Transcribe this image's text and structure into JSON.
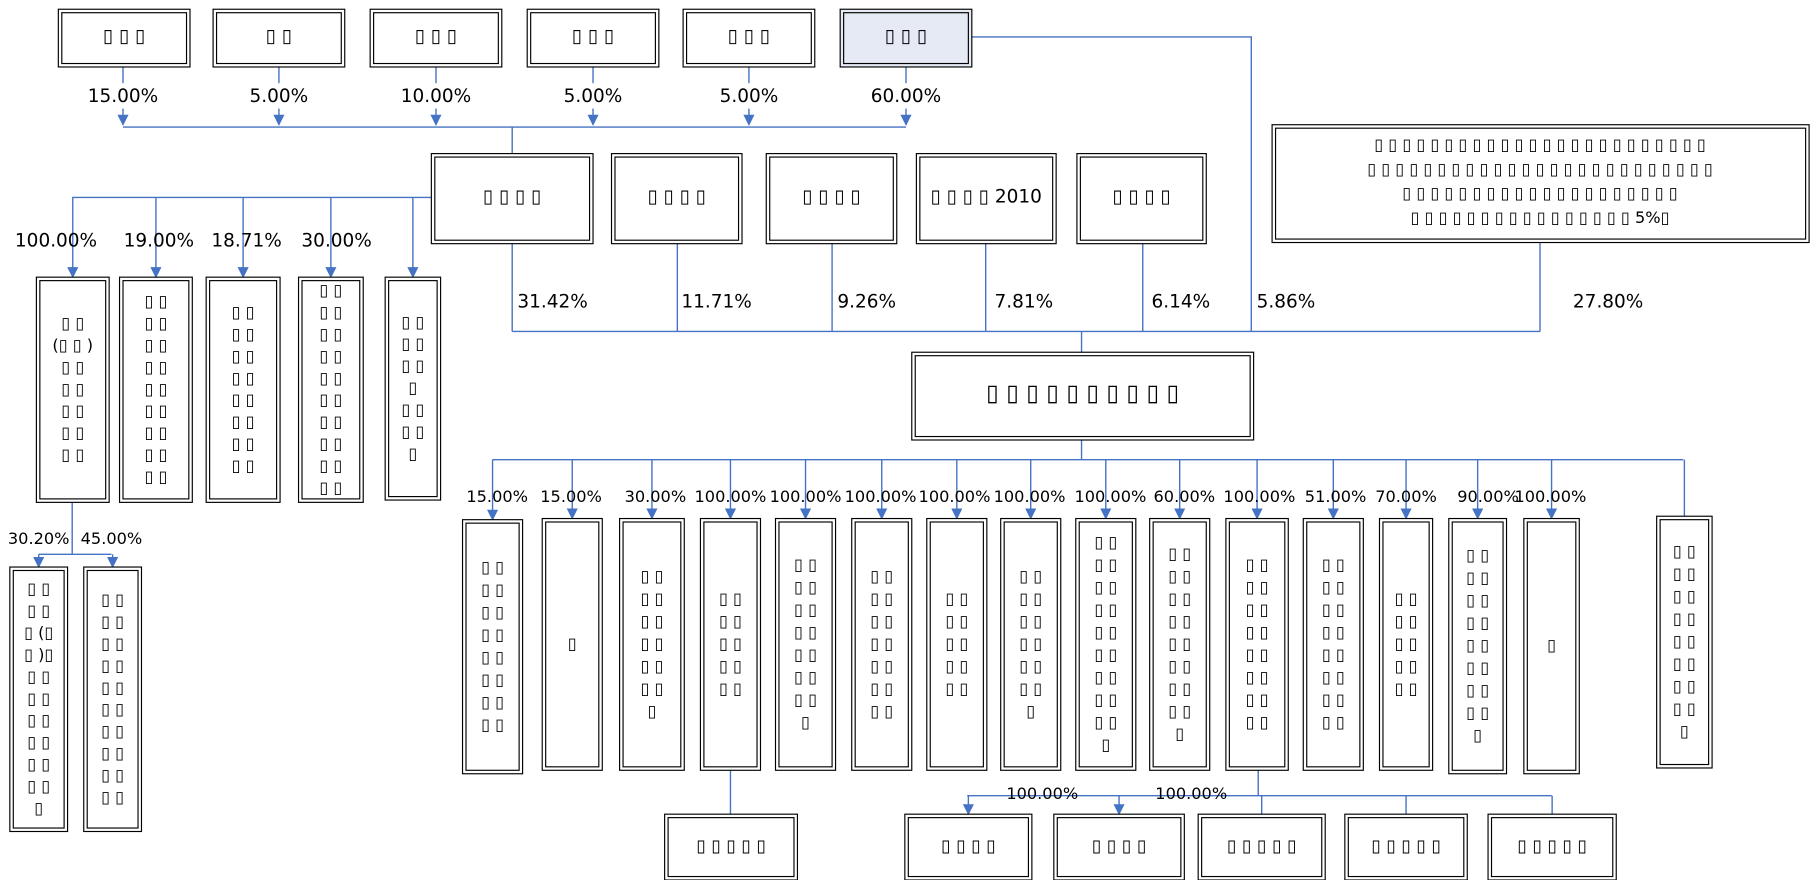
{
  "top_shareholders": [
    {
      "label": "▯ ▯ ▯",
      "percent": "15.00%"
    },
    {
      "label": "▯   ▯",
      "percent": "5.00%"
    },
    {
      "label": "▯ ▯ ▯",
      "percent": "10.00%"
    },
    {
      "label": "▯ ▯ ▯",
      "percent": "5.00%"
    },
    {
      "label": "▯ ▯ ▯",
      "percent": "5.00%"
    },
    {
      "label": "▯ ▯ ▯",
      "percent": "60.00%",
      "direct_percent": "5.86%"
    }
  ],
  "middle_shareholders": [
    {
      "label": "▯ ▯ ▯ ▯",
      "percent": "31.42%"
    },
    {
      "label": "▯ ▯ ▯ ▯",
      "percent": "11.71%"
    },
    {
      "label": "▯ ▯ ▯ ▯",
      "percent": "9.26%"
    },
    {
      "label": "▯ ▯ ▯ ▯ 2010",
      "percent": "7.81%"
    },
    {
      "label": "▯ ▯ ▯ ▯",
      "percent": "6.14%"
    }
  ],
  "note_box": {
    "lines": [
      "▯ ▯ ▯ ▯ ▯ ▯ ▯ ▯ ▯ ▯ ▯ ▯ ▯ ▯ ▯ ▯ ▯ ▯ ▯ ▯ ▯ ▯ ▯ ▯",
      "▯ ▯ ▯ ▯ ▯ ▯ ▯ ▯ ▯ ▯ ▯ ▯ ▯ ▯ ▯ ▯ ▯ ▯ ▯ ▯ ▯ ▯ ▯ ▯ ▯",
      "▯ ▯ ▯ ▯ ▯ ▯ ▯ ▯ ▯ ▯ ▯ ▯ ▯ ▯ ▯ ▯ ▯ ▯ ▯ ▯",
      "▯ ▯ ▯ ▯ ▯ ▯ ▯ ▯ ▯ ▯ ▯ ▯ ▯ ▯ ▯ ▯ 5%▯"
    ],
    "percent": "27.80%"
  },
  "company": {
    "label": "▯ ▯ ▯ ▯ ▯ ▯ ▯ ▯ ▯ ▯"
  },
  "left_investees": [
    {
      "lines": [
        "▯ ▯",
        "(▯ ▯ )",
        "▯ ▯",
        "▯ ▯",
        "▯ ▯",
        "▯ ▯",
        "▯ ▯"
      ],
      "percent": "100.00%"
    },
    {
      "lines": [
        "▯ ▯",
        "▯ ▯",
        "▯ ▯",
        "▯ ▯",
        "▯ ▯",
        "▯ ▯",
        "▯ ▯",
        "▯ ▯",
        "▯ ▯"
      ],
      "percent": "19.00%"
    },
    {
      "lines": [
        "▯ ▯",
        "▯ ▯",
        "▯ ▯",
        "▯ ▯",
        "▯ ▯",
        "▯ ▯",
        "▯ ▯",
        "▯ ▯"
      ],
      "percent": "18.71%"
    },
    {
      "lines": [
        "▯ ▯",
        "▯ ▯",
        "▯ ▯",
        "▯ ▯",
        "▯ ▯",
        "▯ ▯",
        "▯ ▯",
        "▯ ▯",
        "▯ ▯",
        "▯ ▯"
      ],
      "percent": "30.00%"
    },
    {
      "lines": [
        "▯ ▯",
        "▯ ▯",
        "▯ ▯",
        "▯",
        "▯ ▯",
        "▯ ▯",
        "▯"
      ]
    }
  ],
  "left_sub": [
    {
      "lines": [
        "▯ ▯",
        "▯ ▯",
        "▯ (▯",
        "▯ )▯",
        "▯ ▯",
        "▯ ▯",
        "▯ ▯",
        "▯ ▯",
        "▯ ▯",
        "▯ ▯",
        "▯"
      ],
      "percent": "30.20%"
    },
    {
      "lines": [
        "▯ ▯",
        "▯ ▯",
        "▯ ▯",
        "▯ ▯",
        "▯ ▯",
        "▯ ▯",
        "▯ ▯",
        "▯ ▯",
        "▯ ▯",
        "▯ ▯"
      ],
      "percent": "45.00%"
    }
  ],
  "subsidiaries": [
    {
      "lines": [
        "▯ ▯",
        "▯ ▯",
        "▯ ▯",
        "▯ ▯",
        "▯ ▯",
        "▯ ▯",
        "▯ ▯",
        "▯ ▯"
      ],
      "percent": "15.00%"
    },
    {
      "lines": [
        "▯"
      ],
      "percent": "15.00%"
    },
    {
      "lines": [
        "▯ ▯",
        "▯ ▯",
        "▯ ▯",
        "▯ ▯",
        "▯ ▯",
        "▯ ▯",
        "▯"
      ],
      "percent": "30.00%"
    },
    {
      "lines": [
        "▯ ▯",
        "▯ ▯",
        "▯ ▯",
        "▯ ▯",
        "▯ ▯"
      ],
      "percent": "100.00%"
    },
    {
      "lines": [
        "▯ ▯",
        "▯ ▯",
        "▯ ▯",
        "▯ ▯",
        "▯ ▯",
        "▯ ▯",
        "▯ ▯",
        "▯"
      ],
      "percent": "100.00%"
    },
    {
      "lines": [
        "▯ ▯",
        "▯ ▯",
        "▯ ▯",
        "▯ ▯",
        "▯ ▯",
        "▯ ▯",
        "▯ ▯"
      ],
      "percent": "100.00%"
    },
    {
      "lines": [
        "▯ ▯",
        "▯ ▯",
        "▯ ▯",
        "▯ ▯",
        "▯ ▯"
      ],
      "percent": "100.00%"
    },
    {
      "lines": [
        "▯ ▯",
        "▯ ▯",
        "▯ ▯",
        "▯ ▯",
        "▯ ▯",
        "▯ ▯",
        "▯"
      ],
      "percent": "100.00%"
    },
    {
      "lines": [
        "▯ ▯",
        "▯ ▯",
        "▯ ▯",
        "▯ ▯",
        "▯ ▯",
        "▯ ▯",
        "▯ ▯",
        "▯ ▯",
        "▯ ▯",
        "▯"
      ],
      "percent": "100.00%"
    },
    {
      "lines": [
        "▯ ▯",
        "▯ ▯",
        "▯ ▯",
        "▯ ▯",
        "▯ ▯",
        "▯ ▯",
        "▯ ▯",
        "▯ ▯",
        "▯"
      ],
      "percent": "60.00%"
    },
    {
      "lines": [
        "▯ ▯",
        "▯ ▯",
        "▯ ▯",
        "▯ ▯",
        "▯ ▯",
        "▯ ▯",
        "▯ ▯",
        "▯ ▯"
      ],
      "percent": "100.00%"
    },
    {
      "lines": [
        "▯ ▯",
        "▯ ▯",
        "▯ ▯",
        "▯ ▯",
        "▯ ▯",
        "▯ ▯",
        "▯ ▯",
        "▯ ▯"
      ],
      "percent": "51.00%"
    },
    {
      "lines": [
        "▯ ▯",
        "▯ ▯",
        "▯ ▯",
        "▯ ▯",
        "▯ ▯"
      ],
      "percent": "70.00%"
    },
    {
      "lines": [
        "▯ ▯",
        "▯ ▯",
        "▯ ▯",
        "▯ ▯",
        "▯ ▯",
        "▯ ▯",
        "▯ ▯",
        "▯ ▯",
        "▯"
      ],
      "percent": "90.00%"
    },
    {
      "lines": [
        "▯"
      ],
      "percent": "100.00%"
    },
    {
      "lines": [
        "▯ ▯",
        "▯ ▯",
        "▯ ▯",
        "▯ ▯",
        "▯ ▯",
        "▯ ▯",
        "▯ ▯",
        "▯ ▯",
        "▯"
      ]
    }
  ],
  "bottom": [
    {
      "label": "▯ ▯ ▯ ▯ ▯"
    },
    {
      "label": "▯ ▯ ▯ ▯",
      "percent": "100.00%"
    },
    {
      "label": "▯ ▯ ▯ ▯",
      "percent": "100.00%"
    },
    {
      "label": "▯ ▯ ▯ ▯ ▯"
    },
    {
      "label": "▯ ▯ ▯ ▯ ▯"
    },
    {
      "label": "▯ ▯ ▯ ▯ ▯"
    }
  ]
}
